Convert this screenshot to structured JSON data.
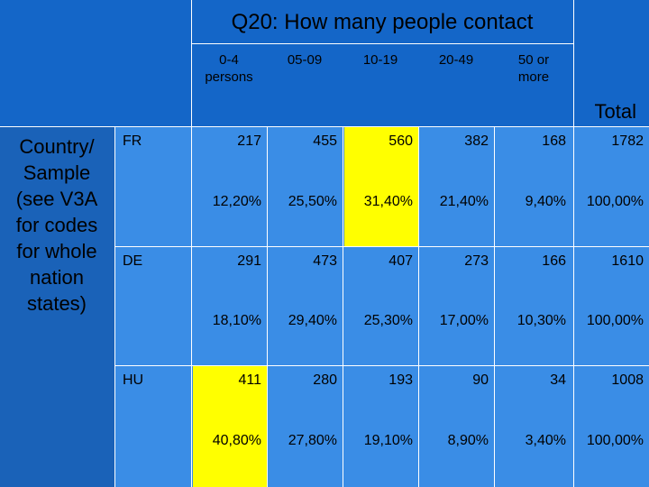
{
  "table": {
    "title": "Q20: How many people contact",
    "columns": [
      "0-4\npersons",
      "05-09",
      "10-19",
      "20-49",
      "50 or\nmore"
    ],
    "total_label": "Total",
    "row_header": "Country/\nSample\n(see V3A\nfor codes\nfor whole\nnation\nstates)",
    "countries": [
      {
        "code": "FR",
        "counts": [
          "217",
          "455",
          "560",
          "382",
          "168",
          "1782"
        ],
        "percents": [
          "12,20%",
          "25,50%",
          "31,40%",
          "21,40%",
          "9,40%",
          "100,00%"
        ]
      },
      {
        "code": "DE",
        "counts": [
          "291",
          "473",
          "407",
          "273",
          "166",
          "1610"
        ],
        "percents": [
          "18,10%",
          "29,40%",
          "25,30%",
          "17,00%",
          "10,30%",
          "100,00%"
        ]
      },
      {
        "code": "HU",
        "counts": [
          "411",
          "280",
          "193",
          "90",
          "34",
          "1008"
        ],
        "percents": [
          "40,80%",
          "27,80%",
          "19,10%",
          "8,90%",
          "3,40%",
          "100,00%"
        ]
      }
    ]
  }
}
